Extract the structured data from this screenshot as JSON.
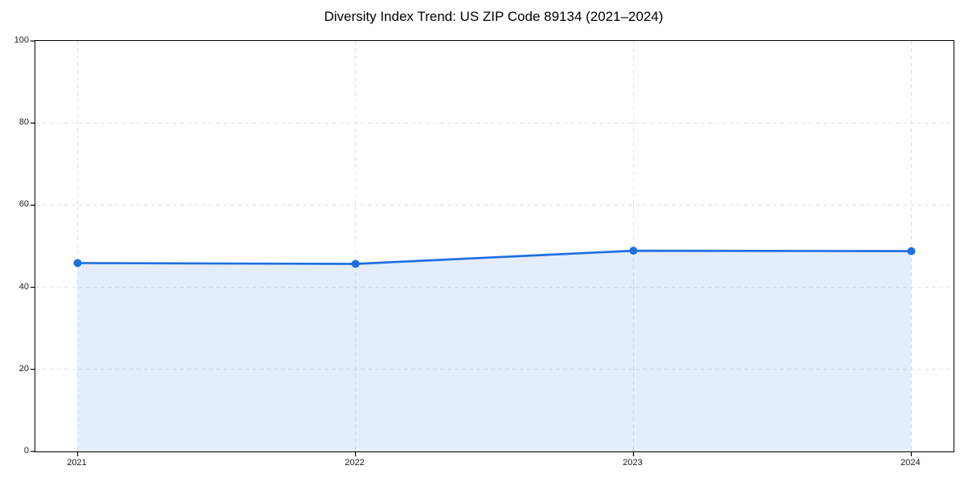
{
  "chart_data": {
    "type": "area",
    "title": "Diversity Index Trend: US ZIP Code 89134 (2021–2024)",
    "series_name": "Diversity Index",
    "categories": [
      "2021",
      "2022",
      "2023",
      "2024"
    ],
    "values": [
      45.9,
      45.7,
      48.9,
      48.8
    ],
    "xlabel": "",
    "ylabel": "",
    "ylim": [
      0,
      100
    ],
    "y_ticks": [
      0,
      20,
      40,
      60,
      80,
      100
    ],
    "grid": true,
    "grid_style": "dashed",
    "legend": "none",
    "marker": "circle",
    "colors": {
      "line": "#1f6fe0",
      "marker": "#1f6fe0",
      "fill": "#1f6fe0",
      "fill_opacity": 0.12,
      "grid": "#e2e2e2",
      "axis": "#000000",
      "tick_text": "#1a1a1a",
      "title_text": "#000000",
      "background": "#ffffff"
    }
  }
}
